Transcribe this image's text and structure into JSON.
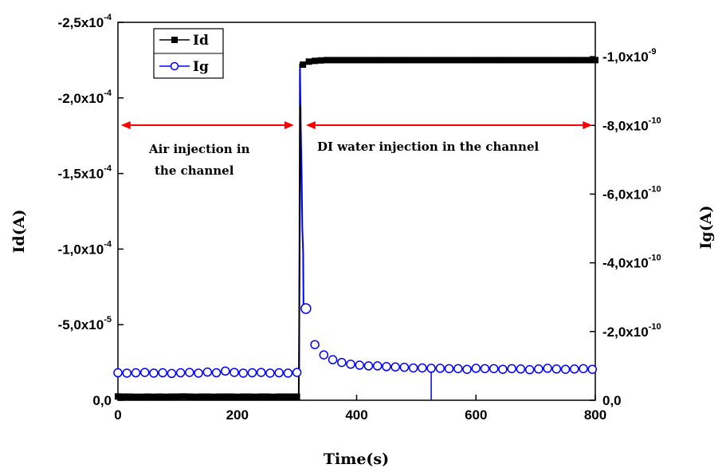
{
  "chart_data": {
    "type": "scatter",
    "xlabel": "Time(s)",
    "ylabel_left": "Id(A)",
    "ylabel_right": "Ig(A)",
    "xlim": [
      0,
      800
    ],
    "ylim_left": [
      0,
      -0.00025
    ],
    "ylim_right": [
      0,
      -1.1e-09
    ],
    "x_ticks": [
      {
        "value": 0,
        "label": "0"
      },
      {
        "value": 200,
        "label": "200"
      },
      {
        "value": 400,
        "label": "400"
      },
      {
        "value": 600,
        "label": "600"
      },
      {
        "value": 800,
        "label": "800"
      }
    ],
    "y_left_ticks": [
      {
        "value": 0,
        "mant": "0,0",
        "exp": ""
      },
      {
        "value": -5e-05,
        "mant": "-5,0x10",
        "exp": "-5"
      },
      {
        "value": -0.0001,
        "mant": "-1,0x10",
        "exp": "-4"
      },
      {
        "value": -0.00015,
        "mant": "-1,5x10",
        "exp": "-4"
      },
      {
        "value": -0.0002,
        "mant": "-2,0x10",
        "exp": "-4"
      },
      {
        "value": -0.00025,
        "mant": "-2,5x10",
        "exp": "-4"
      }
    ],
    "y_right_ticks": [
      {
        "value": 0,
        "mant": "0,0",
        "exp": ""
      },
      {
        "value": -2e-10,
        "mant": "-2,0x10",
        "exp": "-10"
      },
      {
        "value": -4e-10,
        "mant": "-4,0x10",
        "exp": "-10"
      },
      {
        "value": -6e-10,
        "mant": "-6,0x10",
        "exp": "-10"
      },
      {
        "value": -8e-10,
        "mant": "-8,0x10",
        "exp": "-10"
      },
      {
        "value": -1e-09,
        "mant": "-1,0x10",
        "exp": "-9"
      }
    ],
    "legend": {
      "position": "top-left",
      "entries": [
        "Id",
        "Ig"
      ]
    },
    "annotations": [
      {
        "lines": [
          "Air injection in",
          "the channel"
        ],
        "arrow_x": [
          5,
          295
        ]
      },
      {
        "lines": [
          "DI water injection in the channel"
        ],
        "arrow_x": [
          315,
          795
        ]
      }
    ],
    "series": [
      {
        "name": "Id",
        "axis": "left",
        "color": "#000000",
        "marker": "filled-square",
        "x": [
          0,
          10,
          20,
          30,
          40,
          50,
          60,
          70,
          80,
          90,
          100,
          110,
          120,
          130,
          140,
          150,
          160,
          170,
          180,
          190,
          200,
          210,
          220,
          230,
          240,
          250,
          260,
          270,
          280,
          290,
          300,
          310,
          320,
          330,
          340,
          350,
          360,
          370,
          380,
          390,
          400,
          410,
          420,
          430,
          440,
          450,
          460,
          470,
          480,
          490,
          500,
          510,
          520,
          530,
          540,
          550,
          560,
          570,
          580,
          590,
          600,
          610,
          620,
          630,
          640,
          650,
          660,
          670,
          680,
          690,
          700,
          710,
          720,
          730,
          740,
          750,
          760,
          770,
          780,
          790,
          800
        ],
        "y": [
          -2.5e-06,
          -2.4e-06,
          -2.4e-06,
          -2.3e-06,
          -2.3e-06,
          -2.4e-06,
          -2.3e-06,
          -2.4e-06,
          -2.3e-06,
          -2.4e-06,
          -2.4e-06,
          -2.5e-06,
          -2.4e-06,
          -2.3e-06,
          -2.4e-06,
          -2.4e-06,
          -2.3e-06,
          -2.4e-06,
          -2.4e-06,
          -2.4e-06,
          -2.3e-06,
          -2.4e-06,
          -2.4e-06,
          -2.3e-06,
          -2.4e-06,
          -2.4e-06,
          -2.3e-06,
          -2.4e-06,
          -2.4e-06,
          -2.4e-06,
          -2.4e-06,
          -0.000222,
          -0.000224,
          -0.0002245,
          -0.0002248,
          -0.000225,
          -0.000225,
          -0.000225,
          -0.000225,
          -0.000225,
          -0.000225,
          -0.000225,
          -0.000225,
          -0.000225,
          -0.000225,
          -0.000225,
          -0.000225,
          -0.000225,
          -0.000225,
          -0.000225,
          -0.000225,
          -0.000225,
          -0.000225,
          -0.000225,
          -0.000225,
          -0.000225,
          -0.000225,
          -0.000225,
          -0.000225,
          -0.000225,
          -0.000225,
          -0.000225,
          -0.000225,
          -0.000225,
          -0.000225,
          -0.000225,
          -0.000225,
          -0.000225,
          -0.000225,
          -0.000225,
          -0.000225,
          -0.000225,
          -0.000225,
          -0.000225,
          -0.000225,
          -0.000225,
          -0.000225,
          -0.000225,
          -0.000225,
          -0.000225,
          -0.000225
        ]
      },
      {
        "name": "Ig",
        "axis": "right",
        "color": "#0000ff",
        "marker": "open-circle",
        "x": [
          0,
          15,
          30,
          45,
          60,
          75,
          90,
          105,
          120,
          135,
          150,
          165,
          180,
          195,
          210,
          225,
          240,
          255,
          270,
          285,
          300,
          315,
          330,
          345,
          360,
          375,
          390,
          405,
          420,
          435,
          450,
          465,
          480,
          495,
          510,
          525,
          540,
          555,
          570,
          585,
          600,
          615,
          630,
          645,
          660,
          675,
          690,
          705,
          720,
          735,
          750,
          765,
          780,
          795
        ],
        "y": [
          -8e-11,
          -7.9e-11,
          -8e-11,
          -8.1e-11,
          -7.9e-11,
          -8e-11,
          -7.8e-11,
          -8e-11,
          -8.1e-11,
          -7.9e-11,
          -8.2e-11,
          -8e-11,
          -8.5e-11,
          -8.1e-11,
          -7.9e-11,
          -8e-11,
          -8.1e-11,
          -7.9e-11,
          -8e-11,
          -7.9e-11,
          -8.1e-11,
          -2.67e-10,
          -1.62e-10,
          -1.32e-10,
          -1.18e-10,
          -1.1e-10,
          -1.05e-10,
          -1.02e-10,
          -1e-10,
          -1e-10,
          -9.8e-11,
          -9.7e-11,
          -9.6e-11,
          -9.4e-11,
          -9.4e-11,
          -9.3e-11,
          -9.3e-11,
          -9.2e-11,
          -9.2e-11,
          -9e-11,
          -9.3e-11,
          -9.2e-11,
          -9.2e-11,
          -9e-11,
          -9.2e-11,
          -9.1e-11,
          -8.9e-11,
          -9.1e-11,
          -9.3e-11,
          -9.1e-11,
          -9e-11,
          -9.1e-11,
          -9.2e-11,
          -9e-11
        ],
        "transient_peak": {
          "x": 305,
          "y": -9.8e-10
        }
      }
    ]
  }
}
